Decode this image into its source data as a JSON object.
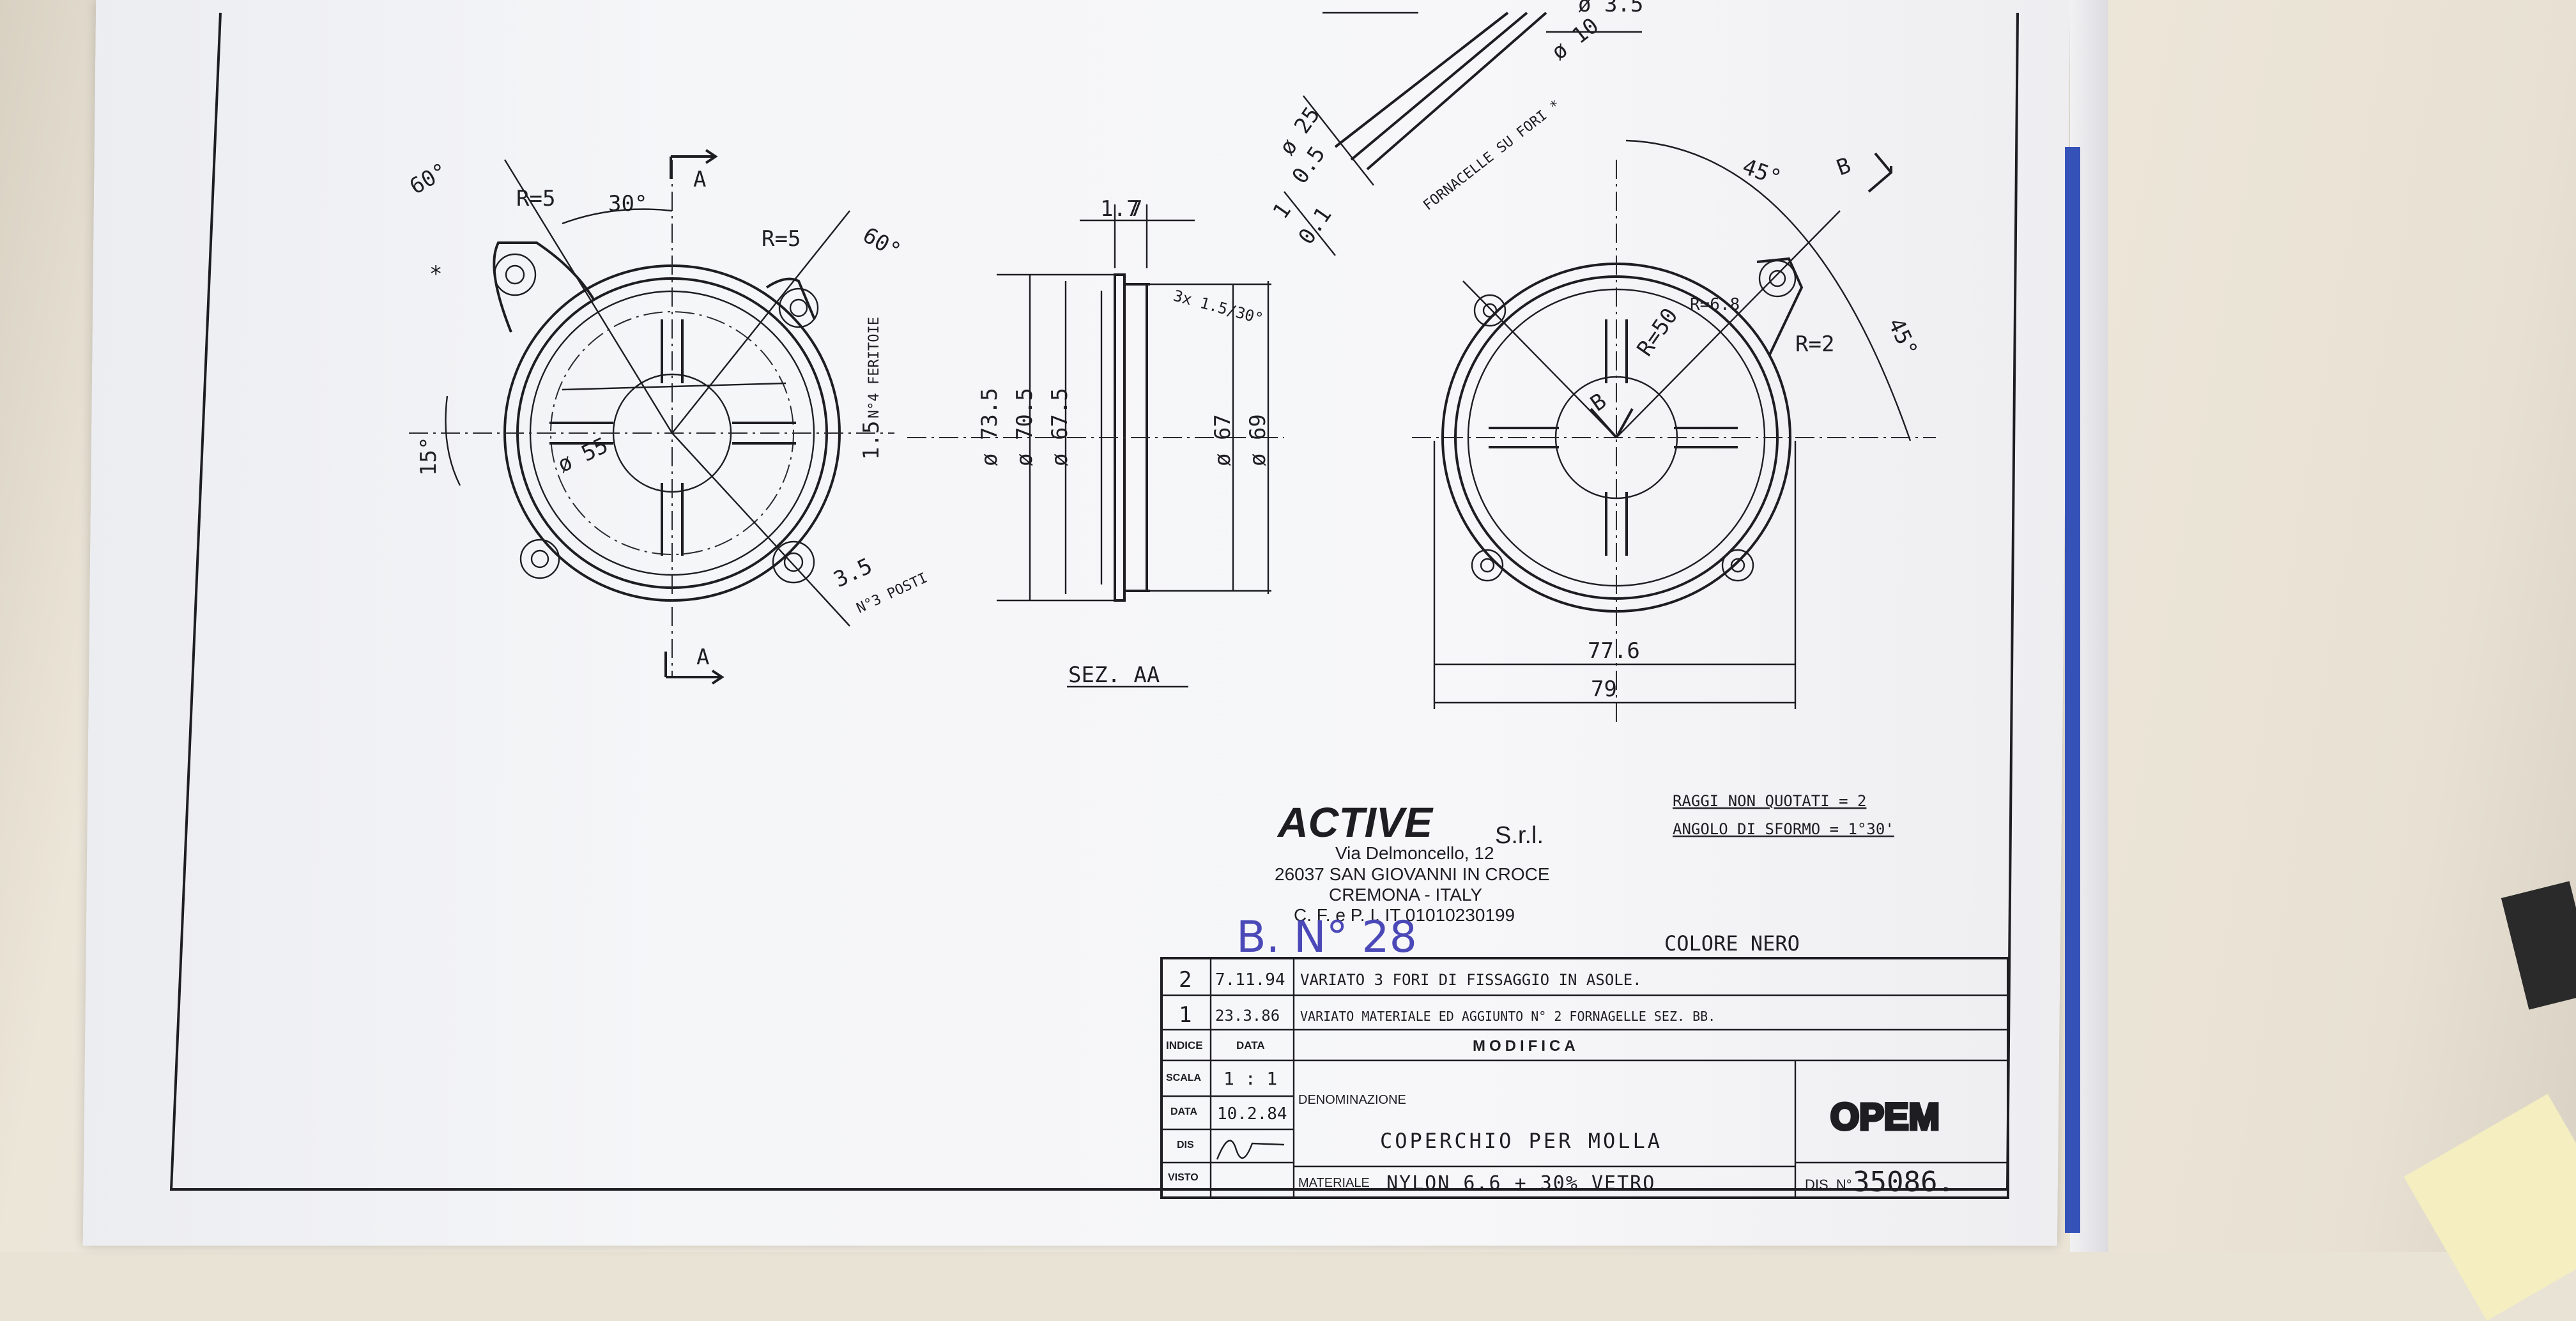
{
  "company": {
    "name": "ACTIVE",
    "suffix": "S.r.l.",
    "address1": "Via Delmoncello, 12",
    "address2": "26037 SAN GIOVANNI IN CROCE",
    "address3": "CREMONA - ITALY",
    "tax": "C. F. e P. I. IT 01010230199"
  },
  "notes": {
    "raggi": "RAGGI NON QUOTATI = 2",
    "angolo": "ANGOLO DI SFORMO = 1°30'",
    "colore": "COLORE NERO",
    "batch": "B. N° 28"
  },
  "views": {
    "section_label": "SEZ. AA",
    "cut_a_top": "A",
    "cut_a_bottom": "A",
    "cut_b": "B",
    "cut_b_inner": "B"
  },
  "dimensions": {
    "front": [
      "60°",
      "R=5",
      "30°",
      "R=5",
      "60°",
      "N°4 FERITOIE",
      "15°",
      "ø 55",
      "1.5",
      "3.5",
      "N°3 POSTI",
      "*"
    ],
    "section": [
      "1.7",
      "7",
      "ø 73.5",
      "ø 70.5",
      "ø 67.5",
      "ø 67",
      "ø 69",
      "3x 1.5/30°"
    ],
    "rear": [
      "45°",
      "45°",
      "R=50",
      "R=6.8",
      "R=2",
      "77.6",
      "79"
    ],
    "detail": [
      "ø 25",
      "0.5",
      "1",
      "0.1",
      "FORNACELLE SU FORI *",
      "ø 10",
      "ø 3.5"
    ]
  },
  "revisions": [
    {
      "index": "2",
      "date": "7.11.94",
      "text": "VARIATO 3 FORI DI FISSAGGIO IN ASOLE."
    },
    {
      "index": "1",
      "date": "23.3.86",
      "text": "VARIATO MATERIALE ED AGGIUNTO N° 2 FORNAGELLE SEZ. BB."
    }
  ],
  "titleblock": {
    "indice_label": "INDICE",
    "data_label": "DATA",
    "modifica_label": "MODIFICA",
    "scala_label": "SCALA",
    "scala_value": "1 : 1",
    "date_label": "DATA",
    "date_value": "10.2.84",
    "dis_label": "DIS",
    "visto_label": "VISTO",
    "denominazione_label": "DENOMINAZIONE",
    "denominazione_value": "COPERCHIO PER MOLLA",
    "materiale_label": "MATERIALE",
    "materiale_value": "NYLON 6.6 + 30% VETRO",
    "logo": "OPEM",
    "dis_no_label": "DIS. N°",
    "dis_no_value": "35086."
  },
  "colors": {
    "ink": "#1d1d22",
    "pen": "#4b49b8",
    "binder": "#3552b9"
  }
}
